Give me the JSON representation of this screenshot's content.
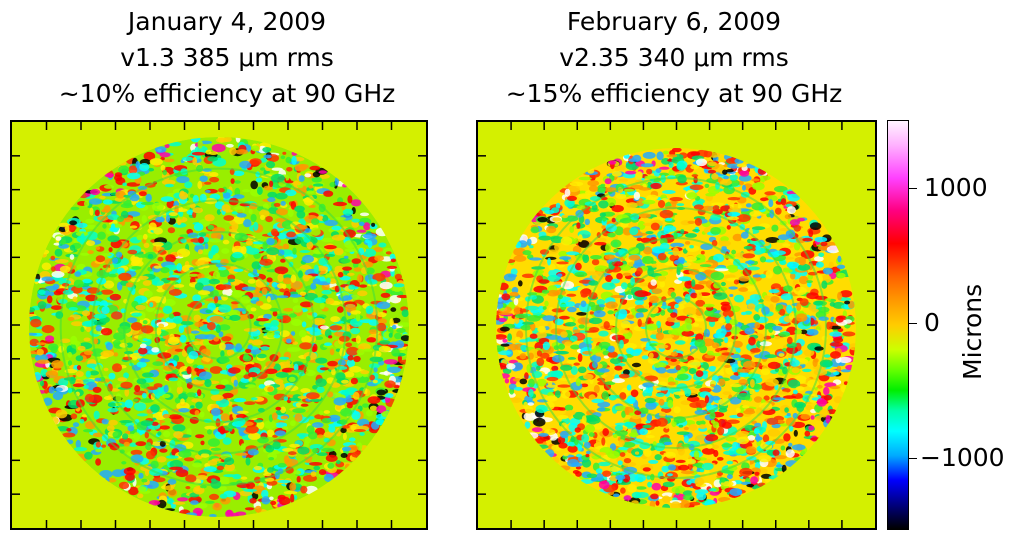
{
  "left_panel": {
    "date": "January 4, 2009",
    "version_rms": "v1.3  385 μm rms",
    "efficiency": "~10% efficiency at 90 GHz"
  },
  "right_panel": {
    "date": "February 6, 2009",
    "version_rms": "v2.35  340 μm rms",
    "efficiency": "~15% efficiency at 90 GHz"
  },
  "colorbar": {
    "title": "Microns",
    "ticks": [
      "1000",
      "0",
      "−1000"
    ]
  },
  "colors": {
    "background": "#d4f000"
  }
}
